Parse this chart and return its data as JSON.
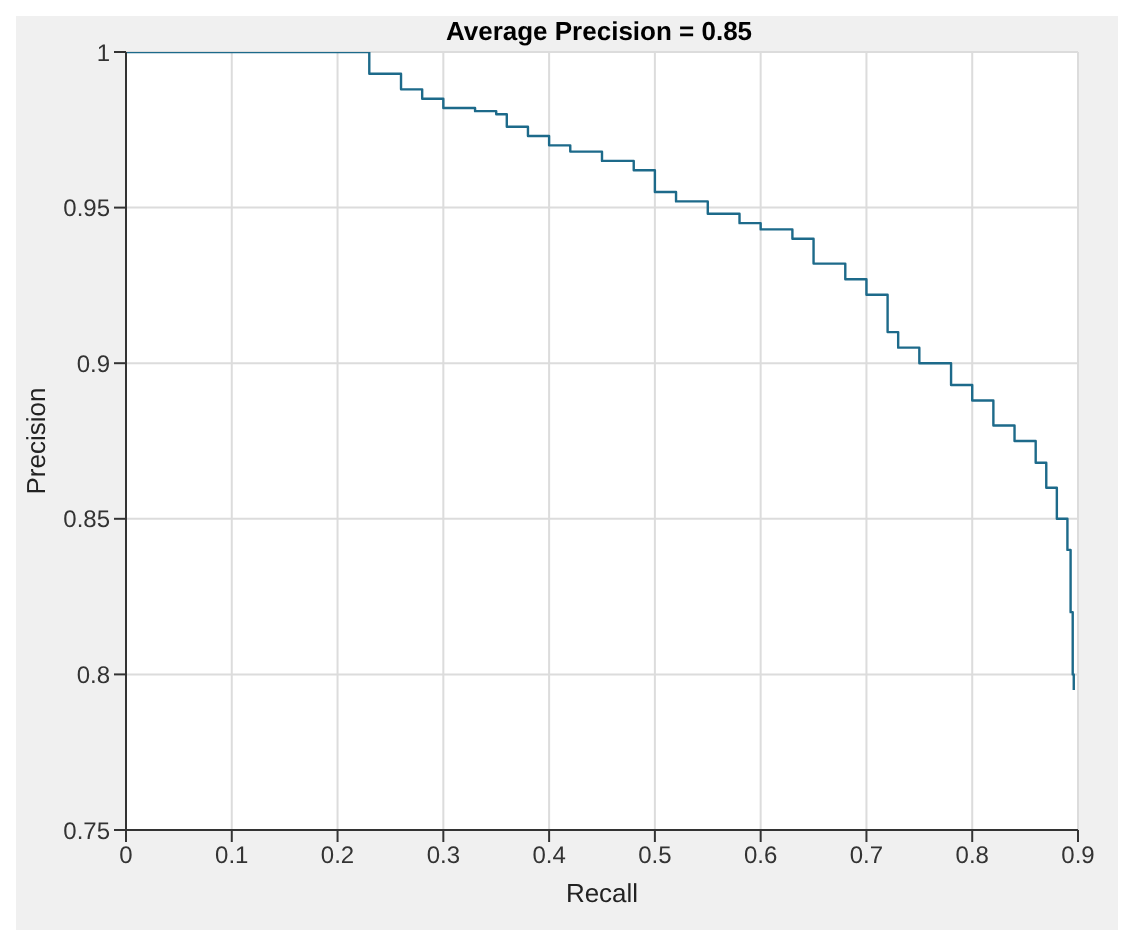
{
  "chart_data": {
    "type": "step",
    "title": "Average Precision = 0.85",
    "xlabel": "Recall",
    "ylabel": "Precision",
    "x": [
      0,
      0.1,
      0.225,
      0.23,
      0.26,
      0.28,
      0.3,
      0.33,
      0.35,
      0.36,
      0.38,
      0.4,
      0.42,
      0.45,
      0.48,
      0.5,
      0.52,
      0.55,
      0.58,
      0.6,
      0.63,
      0.65,
      0.68,
      0.7,
      0.72,
      0.73,
      0.75,
      0.78,
      0.8,
      0.82,
      0.84,
      0.86,
      0.87,
      0.88,
      0.89,
      0.893,
      0.895,
      0.896
    ],
    "series": [
      {
        "color": "#1d6a8a",
        "values": [
          1,
          1,
          1,
          0.993,
          0.988,
          0.985,
          0.982,
          0.981,
          0.98,
          0.976,
          0.973,
          0.97,
          0.968,
          0.965,
          0.962,
          0.955,
          0.952,
          0.948,
          0.945,
          0.943,
          0.94,
          0.932,
          0.927,
          0.922,
          0.91,
          0.905,
          0.9,
          0.893,
          0.888,
          0.88,
          0.875,
          0.868,
          0.86,
          0.85,
          0.84,
          0.82,
          0.8,
          0.795
        ]
      }
    ],
    "xlim": [
      0,
      0.9
    ],
    "xticks": [
      0,
      0.1,
      0.2,
      0.3,
      0.4,
      0.5,
      0.6,
      0.7,
      0.8,
      0.9
    ],
    "ylim": [
      0.75,
      1
    ],
    "yticks": [
      0.75,
      0.8,
      0.85,
      0.9,
      0.95,
      1
    ],
    "grid": true,
    "legend": false,
    "marker": "none",
    "line_style": "solid"
  }
}
